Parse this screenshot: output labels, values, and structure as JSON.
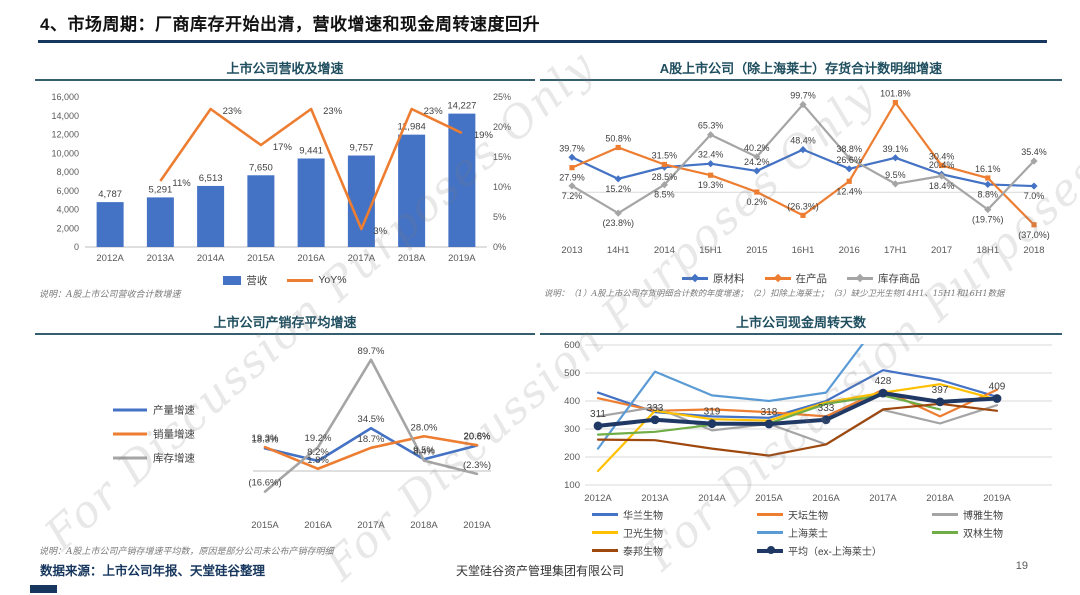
{
  "page": {
    "title": "4、市场周期：厂商库存开始出清，营收增速和现金周转速度回升",
    "watermark": "For Discussion Purposes Only",
    "footer": {
      "source": "数据来源：上市公司年报、天堂硅谷整理",
      "company": "天堂硅谷资产管理集团有限公司",
      "page_number": "19"
    }
  },
  "colors": {
    "rule": "#17375E",
    "panel_title": "#1F4E5F",
    "blue": "#4472C4",
    "orange": "#ED7D31",
    "gray": "#A5A5A5",
    "yellow": "#FFC000",
    "light_blue": "#5B9BD5",
    "green": "#70AD47",
    "brown": "#9E480E",
    "navy": "#1F3864",
    "axis_text": "#595959",
    "label_text": "#404040",
    "gridline": "#D9D9D9"
  },
  "chart_data": [
    {
      "id": "revenue",
      "type": "bar",
      "title": "上市公司营收及增速",
      "note": "说明：A股上市公司营收合计数增速",
      "categories": [
        "2012A",
        "2013A",
        "2014A",
        "2015A",
        "2016A",
        "2017A",
        "2018A",
        "2019A"
      ],
      "ylim_left": [
        0,
        16000
      ],
      "yticks_left": [
        "0",
        "2,000",
        "4,000",
        "6,000",
        "8,000",
        "10,000",
        "12,000",
        "14,000",
        "16,000"
      ],
      "ylim_right": [
        0,
        25
      ],
      "yticks_right": [
        "0%",
        "5%",
        "10%",
        "15%",
        "20%",
        "25%"
      ],
      "series": [
        {
          "name": "营收",
          "type": "bar",
          "axis": "left",
          "color": "#4472C4",
          "values": [
            4787,
            5291,
            6513,
            7650,
            9441,
            9757,
            11984,
            14227
          ],
          "labels": [
            "4,787",
            "5,291",
            "6,513",
            "7,650",
            "9,441",
            "9,757",
            "11,984",
            "14,227"
          ]
        },
        {
          "name": "YoY%",
          "type": "line",
          "axis": "right",
          "color": "#ED7D31",
          "values": [
            null,
            11,
            23,
            17,
            23,
            3,
            23,
            19
          ],
          "labels": [
            "",
            "11%",
            "23%",
            "17%",
            "23%",
            "3%",
            "23%",
            "19%"
          ]
        }
      ],
      "legend_position": "bottom"
    },
    {
      "id": "inventory",
      "type": "line",
      "title": "A股上市公司（除上海莱士）存货合计数明细增速",
      "note": "说明：（1）A股上市公司存货明细合计数的年度增速；（2）扣除上海莱士；（3）缺少卫光生物14H1、15H1和16H1数据",
      "categories": [
        "2013",
        "14H1",
        "2014",
        "15H1",
        "2015",
        "16H1",
        "2016",
        "17H1",
        "2017",
        "18H1",
        "2018"
      ],
      "ylim": [
        -55,
        115
      ],
      "series": [
        {
          "name": "原材料",
          "color": "#4472C4",
          "marker": "diamond",
          "values": [
            39.7,
            15.2,
            28.5,
            32.4,
            24.2,
            48.4,
            26.6,
            39.1,
            20.4,
            8.8,
            7.0
          ],
          "labels": [
            "39.7%",
            "15.2%",
            "28.5%",
            "32.4%",
            "24.2%",
            "48.4%",
            "26.6%",
            "39.1%",
            "20.4%",
            "8.8%",
            "7.0%"
          ],
          "label_sides": [
            "a",
            "b",
            "b",
            "a",
            "a",
            "a",
            "a",
            "a",
            "a",
            "b",
            "b"
          ]
        },
        {
          "name": "在产品",
          "color": "#ED7D31",
          "marker": "square",
          "values": [
            27.9,
            50.8,
            31.5,
            19.3,
            0.2,
            -26.3,
            12.4,
            101.8,
            30.4,
            16.1,
            -37.0
          ],
          "labels": [
            "27.9%",
            "50.8%",
            "31.5%",
            "19.3%",
            "0.2%",
            "(26.3%)",
            "12.4%",
            "101.8%",
            "30.4%",
            "16.1%",
            "(37.0%)"
          ],
          "label_sides": [
            "b",
            "a",
            "a",
            "b",
            "b",
            "a",
            "b",
            "a",
            "a",
            "a",
            "b"
          ]
        },
        {
          "name": "库存商品",
          "color": "#A5A5A5",
          "marker": "diamond",
          "values": [
            7.2,
            -23.8,
            8.5,
            65.3,
            40.2,
            99.7,
            38.8,
            9.5,
            18.4,
            -19.7,
            35.4
          ],
          "labels": [
            "7.2%",
            "(23.8%)",
            "8.5%",
            "65.3%",
            "40.2%",
            "99.7%",
            "38.8%",
            "9.5%",
            "18.4%",
            "(19.7%)",
            "35.4%"
          ],
          "label_sides": [
            "b",
            "b",
            "b",
            "a",
            "a",
            "a",
            "a",
            "a",
            "b",
            "b",
            "a"
          ]
        }
      ],
      "legend_position": "bottom"
    },
    {
      "id": "production",
      "type": "line",
      "title": "上市公司产销存平均增速",
      "note": "说明：A股上市公司产销存增速平均数，原因是部分公司未公布产销存明细",
      "categories": [
        "2015A",
        "2016A",
        "2017A",
        "2018A",
        "2019A"
      ],
      "ylim": [
        -45,
        105
      ],
      "series": [
        {
          "name": "产量增速",
          "color": "#4472C4",
          "values": [
            18.3,
            8.2,
            34.5,
            9.5,
            20.6
          ],
          "labels": [
            "18.3%",
            "8.2%",
            "34.5%",
            "9.5%",
            "20.6%"
          ],
          "label_sides": [
            "a",
            "a",
            "a",
            "a",
            "a"
          ]
        },
        {
          "name": "销量增速",
          "color": "#ED7D31",
          "values": [
            19.3,
            1.8,
            18.7,
            28.0,
            20.8
          ],
          "labels": [
            "19.3%",
            "1.8%",
            "18.7%",
            "28.0%",
            "20.8%"
          ],
          "label_sides": [
            "a",
            "a",
            "a",
            "a",
            "a"
          ]
        },
        {
          "name": "库存增速",
          "color": "#A5A5A5",
          "values": [
            -16.6,
            19.2,
            89.7,
            8.4,
            -2.3
          ],
          "labels": [
            "(16.6%)",
            "19.2%",
            "89.7%",
            "8.4%",
            "(2.3%)"
          ],
          "label_sides": [
            "a",
            "a",
            "a",
            "a",
            "a"
          ]
        }
      ],
      "legend_position": "inside-left"
    },
    {
      "id": "cash",
      "type": "line",
      "title": "上市公司现金周转天数",
      "categories": [
        "2012A",
        "2013A",
        "2014A",
        "2015A",
        "2016A",
        "2017A",
        "2018A",
        "2019A"
      ],
      "ylim": [
        100,
        600
      ],
      "yticks": [
        "100",
        "200",
        "300",
        "400",
        "500",
        "600"
      ],
      "series": [
        {
          "name": "华兰生物",
          "color": "#4472C4",
          "values": [
            430,
            360,
            345,
            340,
            400,
            510,
            475,
            415
          ]
        },
        {
          "name": "天坛生物",
          "color": "#ED7D31",
          "values": [
            410,
            365,
            370,
            360,
            345,
            440,
            345,
            440
          ]
        },
        {
          "name": "博雅生物",
          "color": "#A5A5A5",
          "values": [
            345,
            378,
            295,
            318,
            245,
            368,
            320,
            385
          ]
        },
        {
          "name": "卫光生物",
          "color": "#FFC000",
          "values": [
            150,
            365,
            335,
            330,
            395,
            430,
            460,
            405
          ]
        },
        {
          "name": "上海莱士",
          "color": "#5B9BD5",
          "values": [
            230,
            505,
            420,
            400,
            430,
            700,
            null,
            null
          ]
        },
        {
          "name": "双林生物",
          "color": "#70AD47",
          "values": [
            280,
            290,
            315,
            320,
            390,
            420,
            370,
            null
          ]
        },
        {
          "name": "泰邦生物",
          "color": "#9E480E",
          "values": [
            262,
            260,
            230,
            205,
            245,
            370,
            390,
            365
          ]
        },
        {
          "name": "平均（ex-上海莱士）",
          "color": "#1F3864",
          "width": 4,
          "marker": "circle",
          "values": [
            311,
            333,
            319,
            318,
            333,
            428,
            397,
            409
          ],
          "labels": [
            "311",
            "333",
            "319",
            "318",
            "333",
            "428",
            "397",
            "409"
          ],
          "label_sides": [
            "a",
            "a",
            "a",
            "a",
            "a",
            "a",
            "a",
            "a"
          ]
        }
      ],
      "legend_position": "bottom-grid"
    }
  ]
}
